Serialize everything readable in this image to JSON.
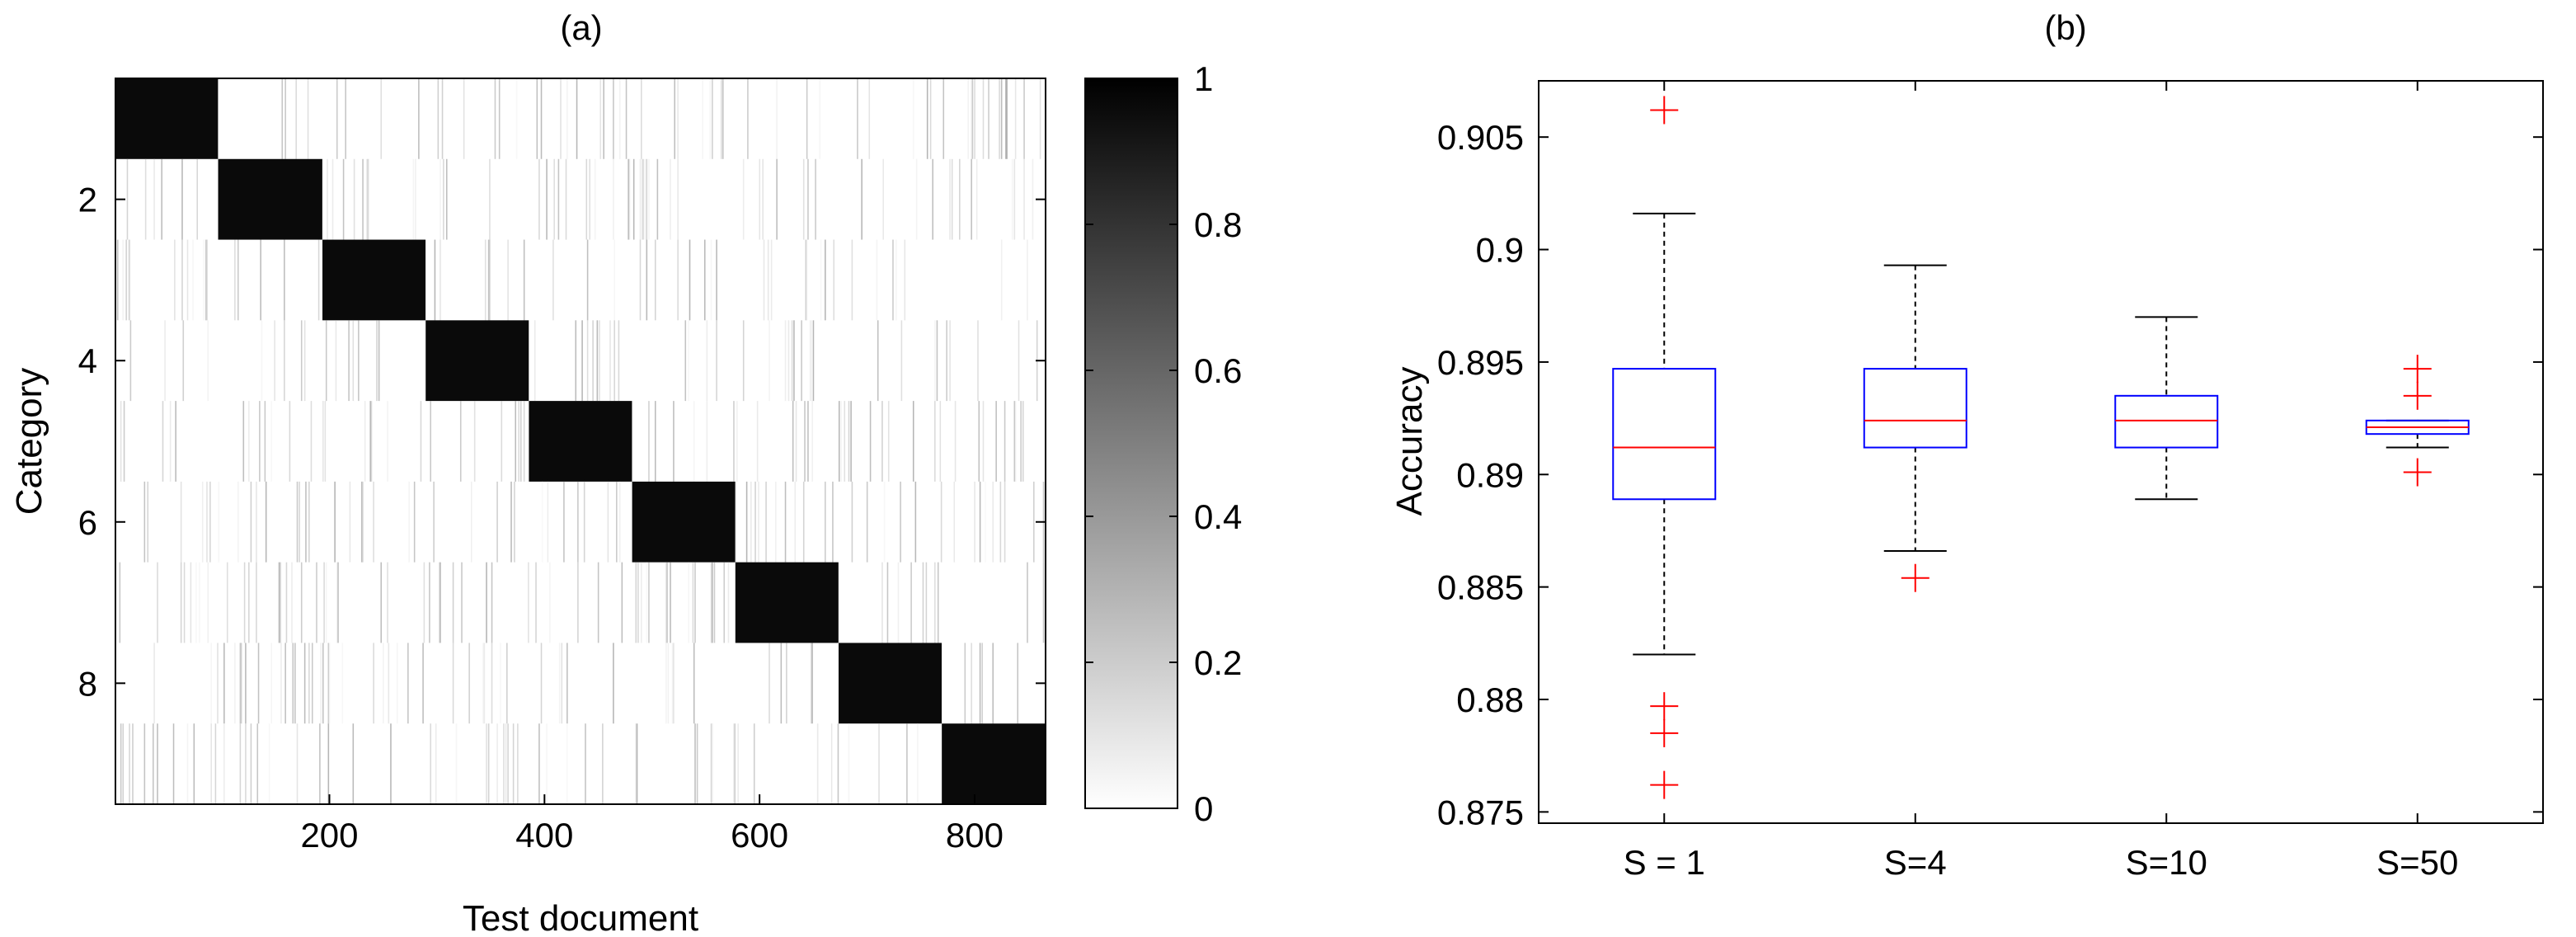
{
  "chart_data": [
    {
      "type": "heatmap",
      "panel_label": "(a)",
      "xlabel": "Test document",
      "ylabel": "Category",
      "xlim": [
        1,
        866
      ],
      "ylim": [
        0.5,
        9.5
      ],
      "y_reversed": true,
      "xticks": [
        200,
        400,
        600,
        800
      ],
      "yticks": [
        2,
        4,
        6,
        8
      ],
      "num_categories": 9,
      "num_documents": 866,
      "category_doc_ranges": [
        {
          "category": 1,
          "start": 1,
          "end": 96
        },
        {
          "category": 2,
          "start": 97,
          "end": 193
        },
        {
          "category": 3,
          "start": 194,
          "end": 289
        },
        {
          "category": 4,
          "start": 290,
          "end": 385
        },
        {
          "category": 5,
          "start": 386,
          "end": 481
        },
        {
          "category": 6,
          "start": 482,
          "end": 577
        },
        {
          "category": 7,
          "start": 578,
          "end": 673
        },
        {
          "category": 8,
          "start": 674,
          "end": 769
        },
        {
          "category": 9,
          "start": 770,
          "end": 866
        }
      ],
      "colormap": "gray_reversed",
      "colorbar": {
        "min": 0,
        "max": 1,
        "ticks": [
          0,
          0.2,
          0.4,
          0.6,
          0.8,
          1
        ],
        "tick_labels": [
          "0",
          "0.2",
          "0.4",
          "0.6",
          "0.8",
          "1"
        ]
      }
    },
    {
      "type": "box",
      "panel_label": "(b)",
      "xlabel": "",
      "ylabel": "Accuracy",
      "ylim": [
        0.8745,
        0.9075
      ],
      "yticks": [
        0.875,
        0.88,
        0.885,
        0.89,
        0.895,
        0.9,
        0.905
      ],
      "ytick_labels": [
        "0.875",
        "0.88",
        "0.885",
        "0.89",
        "0.895",
        "0.9",
        "0.905"
      ],
      "categories": [
        "S = 1",
        "S=4",
        "S=10",
        "S=50"
      ],
      "boxes": [
        {
          "name": "S = 1",
          "whisker_low": 0.882,
          "q1": 0.8889,
          "median": 0.8912,
          "q3": 0.8947,
          "whisker_high": 0.9016,
          "outliers": [
            0.9062,
            0.8797,
            0.8785,
            0.8762
          ]
        },
        {
          "name": "S=4",
          "whisker_low": 0.8866,
          "q1": 0.8912,
          "median": 0.8924,
          "q3": 0.8947,
          "whisker_high": 0.8993,
          "outliers": [
            0.8854
          ]
        },
        {
          "name": "S=10",
          "whisker_low": 0.8889,
          "q1": 0.8912,
          "median": 0.8924,
          "q3": 0.8935,
          "whisker_high": 0.897,
          "outliers": []
        },
        {
          "name": "S=50",
          "whisker_low": 0.8912,
          "q1": 0.8918,
          "median": 0.8921,
          "q3": 0.8924,
          "whisker_high": 0.8924,
          "outliers": [
            0.8947,
            0.8935,
            0.8901
          ]
        }
      ],
      "colors": {
        "box": "#0000ff",
        "median": "#ff0000",
        "outlier": "#ff0000",
        "whisker": "#000000"
      }
    }
  ]
}
